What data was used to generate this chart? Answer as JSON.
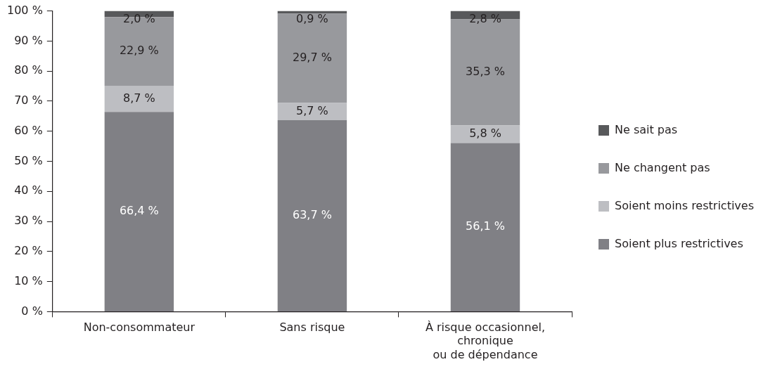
{
  "chart_data": {
    "type": "bar",
    "stacked": true,
    "categories": [
      "Non-consommateur",
      "Sans risque",
      "À risque occasionnel,\nchronique\nou de dépendance"
    ],
    "series": [
      {
        "name": "Soient plus restrictives",
        "color": "#808085",
        "values": [
          66.4,
          63.7,
          56.1
        ],
        "value_labels": [
          "66,4 %",
          "63,7 %",
          "56,1 %"
        ]
      },
      {
        "name": "Soient moins restrictives",
        "color": "#bdbec2",
        "values": [
          8.7,
          5.7,
          5.8
        ],
        "value_labels": [
          "8,7 %",
          "5,7 %",
          "5,8 %"
        ]
      },
      {
        "name": "Ne changent pas",
        "color": "#98999d",
        "values": [
          22.9,
          29.7,
          35.3
        ],
        "value_labels": [
          "22,9 %",
          "29,7 %",
          "35,3 %"
        ]
      },
      {
        "name": "Ne sait pas",
        "color": "#58595b",
        "values": [
          2.0,
          0.9,
          2.8
        ],
        "value_labels": [
          "2,0 %",
          "0,9 %",
          "2,8 %"
        ]
      }
    ],
    "ylim": [
      0,
      100
    ],
    "yticks": [
      {
        "value": 0,
        "label": "0 %"
      },
      {
        "value": 10,
        "label": "10 %"
      },
      {
        "value": 20,
        "label": "20 %"
      },
      {
        "value": 30,
        "label": "30 %"
      },
      {
        "value": 40,
        "label": "40 %"
      },
      {
        "value": 50,
        "label": "50 %"
      },
      {
        "value": 60,
        "label": "60 %"
      },
      {
        "value": 70,
        "label": "70 %"
      },
      {
        "value": 80,
        "label": "80 %"
      },
      {
        "value": 90,
        "label": "90 %"
      },
      {
        "value": 100,
        "label": "100 %"
      }
    ],
    "grid": false,
    "legend": "right"
  }
}
